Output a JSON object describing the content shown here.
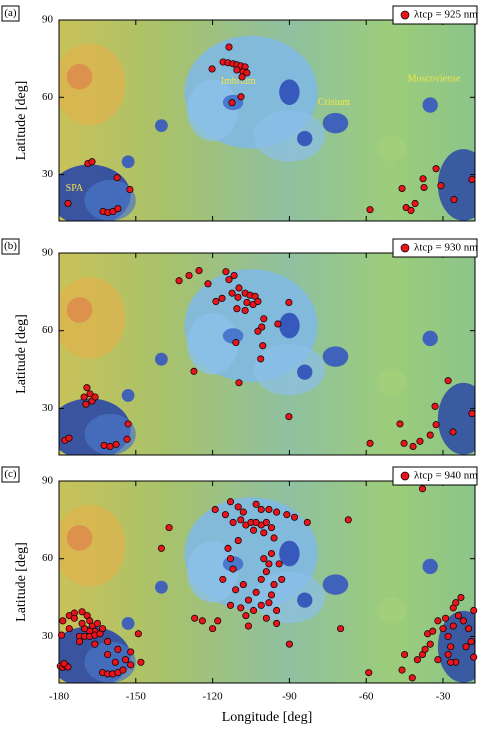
{
  "chart_data": [
    {
      "type": "scatter",
      "panel_label": "(a)",
      "ylabel": "Latitude [deg]",
      "xlim": [
        -180,
        -17.5
      ],
      "ylim": [
        12,
        90
      ],
      "xticks": [
        -180,
        -150,
        -120,
        -90,
        -60,
        -30
      ],
      "yticks": [
        30,
        60,
        90
      ],
      "annotations": [
        "Imbrium",
        "Crisium",
        "Moscoviense",
        "SPA"
      ],
      "series": [
        {
          "name": "λtcp = 925 nm",
          "color": "#e8141c",
          "x": [
            -113.6,
            -120.2,
            -115.9,
            -114.0,
            -112.0,
            -110.5,
            -108.9,
            -107.3,
            -110.5,
            -108.1,
            -106.6,
            -108.5,
            -112.4,
            -108.9,
            -168.7,
            -167.1,
            -157.3,
            -152.3,
            -176.5,
            -162.8,
            -160.9,
            -158.9,
            -157.0,
            -58.5,
            -46.0,
            -44.4,
            -42.5,
            -40.9,
            -37.4,
            -37.8,
            -32.7,
            -30.8,
            -25.7,
            -18.7
          ],
          "y": [
            79.5,
            71.0,
            73.7,
            73.4,
            73.0,
            72.6,
            72.2,
            71.8,
            70.6,
            69.9,
            69.5,
            67.9,
            57.9,
            60.2,
            34.3,
            35.0,
            28.8,
            24.2,
            18.8,
            15.7,
            15.3,
            15.7,
            16.8,
            16.4,
            24.6,
            17.2,
            16.1,
            18.8,
            25.0,
            28.4,
            32.3,
            25.7,
            20.3,
            28.1
          ]
        }
      ]
    },
    {
      "type": "scatter",
      "panel_label": "(b)",
      "ylabel": "Latitude [deg]",
      "xlim": [
        -180,
        -17.5
      ],
      "ylim": [
        12,
        90
      ],
      "xticks": [
        -180,
        -150,
        -120,
        -90,
        -60,
        -30
      ],
      "yticks": [
        30,
        60,
        90
      ],
      "series": [
        {
          "name": "λtcp = 930 nm",
          "color": "#e8141c",
          "x": [
            -133.1,
            -129.2,
            -125.3,
            -121.8,
            -114.8,
            -113.6,
            -111.6,
            -109.7,
            -116.3,
            -118.7,
            -112.4,
            -110.1,
            -107.3,
            -105.4,
            -103.4,
            -106.6,
            -104.2,
            -102.3,
            -107.3,
            -110.5,
            -90.2,
            -94.5,
            -100.0,
            -100.8,
            -102.3,
            -100.4,
            -101.2,
            -110.9,
            -109.7,
            -127.3,
            -169.1,
            -167.9,
            -170.2,
            -167.1,
            -169.5,
            -165.9,
            -153.0,
            -177.7,
            -176.1,
            -162.4,
            -160.1,
            -157.7,
            -153.4,
            -90.2,
            -58.5,
            -46.8,
            -45.2,
            -41.7,
            -39.0,
            -35.0,
            -33.1,
            -32.7,
            -28.0,
            -26.1,
            -18.7
          ],
          "y": [
            79.3,
            81.3,
            83.2,
            78.1,
            82.8,
            79.7,
            81.3,
            76.5,
            72.5,
            71.3,
            74.5,
            72.9,
            74.5,
            73.7,
            73.3,
            70.9,
            70.1,
            71.3,
            67.8,
            68.5,
            70.9,
            62.6,
            64.6,
            61.4,
            59.8,
            54.2,
            49.1,
            55.4,
            39.9,
            44.3,
            38.0,
            35.6,
            34.4,
            32.8,
            31.6,
            34.4,
            24.0,
            17.7,
            18.5,
            15.7,
            15.3,
            16.1,
            18.1,
            26.8,
            16.5,
            24.0,
            16.5,
            15.3,
            17.3,
            19.7,
            30.8,
            23.7,
            40.7,
            20.9,
            28.0
          ]
        }
      ]
    },
    {
      "type": "scatter",
      "panel_label": "(c)",
      "ylabel": "Latitude [deg]",
      "xlabel": "Longitude [deg]",
      "xlim": [
        -180,
        -17.5
      ],
      "ylim": [
        12,
        90
      ],
      "xticks": [
        -180,
        -150,
        -120,
        -90,
        -60,
        -30
      ],
      "yticks": [
        30,
        60,
        90
      ],
      "series": [
        {
          "name": "λtcp = 940 nm",
          "color": "#e8141c",
          "x": [
            -179.5,
            -178.5,
            -177.5,
            -176.5,
            -178,
            -179,
            -178.5,
            -176,
            -174,
            -171,
            -169,
            -168,
            -167,
            -166,
            -168,
            -170,
            -172,
            -170,
            -168,
            -166,
            -164,
            -163,
            -165,
            -171,
            -174,
            -176,
            -172,
            -166,
            -161,
            -157,
            -154,
            -152,
            -158,
            -163,
            -161,
            -159,
            -157,
            -155,
            -152,
            -148,
            -161,
            -149,
            -113,
            -110,
            -103,
            -101,
            -119,
            -115,
            -108,
            -98,
            -95,
            -91,
            -88,
            -83,
            -67,
            -137,
            -140,
            -112,
            -109,
            -107,
            -105,
            -103,
            -101,
            -99,
            -97,
            -104,
            -100,
            -96,
            -110,
            -114,
            -113,
            -112,
            -116,
            -111,
            -108,
            -106,
            -103,
            -101,
            -99,
            -98,
            -97,
            -100,
            -96,
            -97,
            -98,
            -95,
            -101,
            -104,
            -107,
            -109,
            -113,
            -118,
            -120,
            -124,
            -127,
            -106,
            -99,
            -95,
            -90,
            -93,
            -94,
            -70,
            -59,
            -45,
            -46,
            -42,
            -40,
            -38,
            -37,
            -36,
            -35,
            -34,
            -30,
            -28,
            -26,
            -24,
            -26,
            -23,
            -25,
            -22,
            -20,
            -18,
            -19,
            -21,
            -27,
            -28,
            -25,
            -27,
            -32,
            -32,
            -29,
            -18,
            -38
          ],
          "y": [
            18.5,
            18,
            18.8,
            18.2,
            19.5,
            30.5,
            36,
            38,
            39,
            39.5,
            38,
            36,
            34,
            32,
            32,
            33,
            30,
            30,
            30,
            30.5,
            31,
            33,
            35,
            35,
            37,
            33,
            28,
            27,
            23,
            25,
            21,
            19,
            20,
            16,
            15.5,
            15.5,
            16,
            17,
            24,
            20,
            28,
            31,
            82,
            80,
            81,
            79,
            79,
            77,
            78,
            79,
            78,
            77,
            76,
            74,
            75,
            72,
            64,
            74,
            75,
            73,
            74,
            74,
            73,
            74,
            72,
            71,
            70,
            68,
            67,
            64,
            60,
            56,
            52,
            48,
            50,
            44,
            47,
            52,
            55,
            58,
            62,
            60,
            50,
            46,
            43,
            40,
            42,
            40,
            38,
            41,
            42,
            36,
            33,
            36,
            37,
            34,
            37,
            35,
            27,
            52,
            58,
            33,
            16,
            23,
            17,
            14,
            21,
            23,
            25,
            31,
            27,
            32,
            33,
            30,
            34,
            38,
            41,
            45,
            43,
            36,
            33,
            40,
            28,
            26,
            26,
            23,
            20,
            20,
            21,
            36,
            37,
            22,
            87
          ]
        }
      ]
    }
  ]
}
